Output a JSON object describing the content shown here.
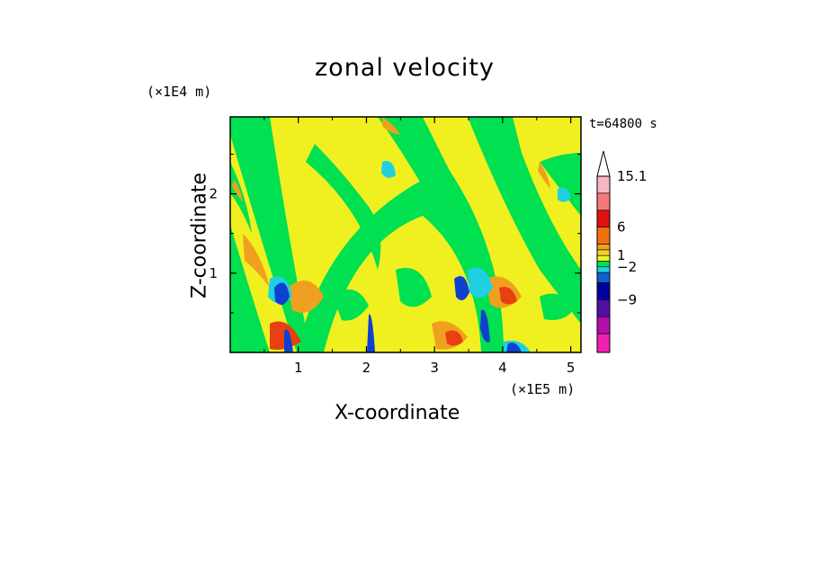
{
  "chart_data": {
    "type": "heatmap",
    "title": "zonal velocity",
    "xlabel": "X-coordinate",
    "ylabel": "Z-coordinate",
    "x_unit_label": "(×1E5 m)",
    "y_unit_label": "(×1E4 m)",
    "time_label": "t=64800 s",
    "xlim": [
      0,
      5.15
    ],
    "ylim": [
      0,
      2.97
    ],
    "x_ticks": [
      "1",
      "2",
      "3",
      "4",
      "5"
    ],
    "y_ticks": [
      "1",
      "2"
    ],
    "colorbar": {
      "labels": [
        "15.1",
        "6",
        "1",
        "−2",
        "−9"
      ],
      "extend": "max",
      "levels": [
        {
          "color": "#f7b6c4"
        },
        {
          "color": "#f47a7a"
        },
        {
          "color": "#e01010"
        },
        {
          "color": "#f07010"
        },
        {
          "color": "#f0a020"
        },
        {
          "color": "#f8d020"
        },
        {
          "color": "#f0f020"
        },
        {
          "color": "#00e050"
        },
        {
          "color": "#20d0e0"
        },
        {
          "color": "#1060d0"
        },
        {
          "color": "#0000a0"
        },
        {
          "color": "#5010a0"
        },
        {
          "color": "#b010a8"
        },
        {
          "color": "#f020b0"
        }
      ]
    },
    "field_colors": {
      "background": "#f0f020",
      "green": "#00e050",
      "orange": "#f0a020",
      "cyan": "#20d0e0",
      "blue": "#1040d0",
      "red": "#e84010"
    }
  }
}
